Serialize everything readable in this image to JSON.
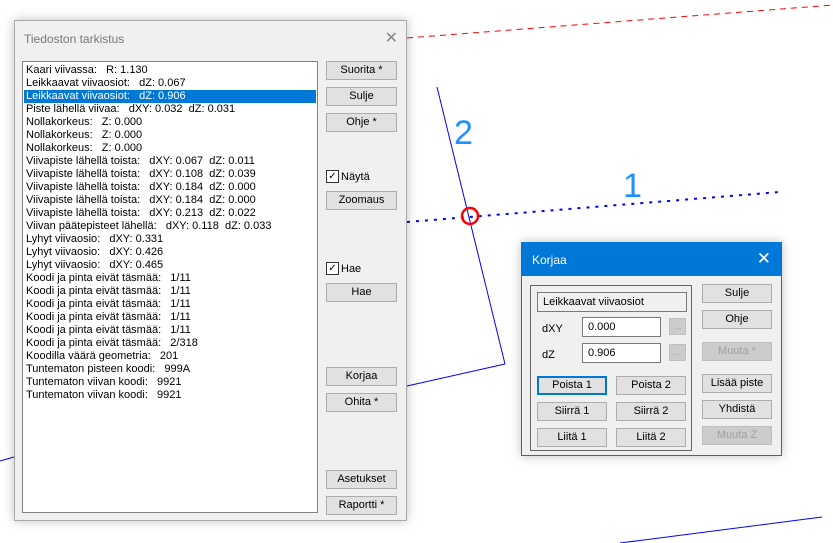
{
  "canvas": {
    "label_1": "1",
    "label_2": "2",
    "line_color": "#0000ff",
    "label_color": "#1e90ff",
    "marker_color": "#ff0000"
  },
  "check_dialog": {
    "title": "Tiedoston tarkistus",
    "rows": [
      "Kaari viivassa:   R: 1.130",
      "Leikkaavat viivaosiot:   dZ: 0.067",
      "Leikkaavat viivaosiot:   dZ: 0.906",
      "Piste lähellä viivaa:   dXY: 0.032  dZ: 0.031",
      "Nollakorkeus:   Z: 0.000",
      "Nollakorkeus:   Z: 0.000",
      "Nollakorkeus:   Z: 0.000",
      "Viivapiste lähellä toista:   dXY: 0.067  dZ: 0.011",
      "Viivapiste lähellä toista:   dXY: 0.108  dZ: 0.039",
      "Viivapiste lähellä toista:   dXY: 0.184  dZ: 0.000",
      "Viivapiste lähellä toista:   dXY: 0.184  dZ: 0.000",
      "Viivapiste lähellä toista:   dXY: 0.213  dZ: 0.022",
      "Viivan päätepisteet lähellä:   dXY: 0.118  dZ: 0.033",
      "Lyhyt viivaosio:   dXY: 0.331",
      "Lyhyt viivaosio:   dXY: 0.426",
      "Lyhyt viivaosio:   dXY: 0.465",
      "Koodi ja pinta eivät täsmää:   1/11",
      "Koodi ja pinta eivät täsmää:   1/11",
      "Koodi ja pinta eivät täsmää:   1/11",
      "Koodi ja pinta eivät täsmää:   1/11",
      "Koodi ja pinta eivät täsmää:   1/11",
      "Koodi ja pinta eivät täsmää:   2/318",
      "Koodilla väärä geometria:   201",
      "Tuntematon pisteen koodi:   999A",
      "Tuntematon viivan koodi:   9921",
      "Tuntematon viivan koodi:   9921"
    ],
    "selected_index": 2,
    "buttons": {
      "run": "Suorita *",
      "close": "Sulje",
      "help": "Ohje *",
      "zoom": "Zoomaus",
      "find": "Hae",
      "fix": "Korjaa",
      "skip": "Ohita *",
      "settings": "Asetukset",
      "report": "Raportti *"
    },
    "show_checkbox": {
      "label": "Näytä",
      "checked": true
    },
    "find_checkbox": {
      "label": "Hae",
      "checked": true
    }
  },
  "fix_dialog": {
    "title": "Korjaa",
    "error_type": "Leikkaavat viivaosiot",
    "dxy_label": "dXY",
    "dxy_value": "0.000",
    "dz_label": "dZ",
    "dz_value": "0.906",
    "ellipsis": "...",
    "buttons": {
      "delete1": "Poista 1",
      "delete2": "Poista 2",
      "move1": "Siirrä 1",
      "move2": "Siirrä 2",
      "join1": "Liitä 1",
      "join2": "Liitä 2",
      "close": "Sulje",
      "help": "Ohje",
      "change": "Muuta *",
      "add_point": "Lisää piste",
      "merge": "Yhdistä",
      "change_z": "Muuta Z"
    }
  }
}
